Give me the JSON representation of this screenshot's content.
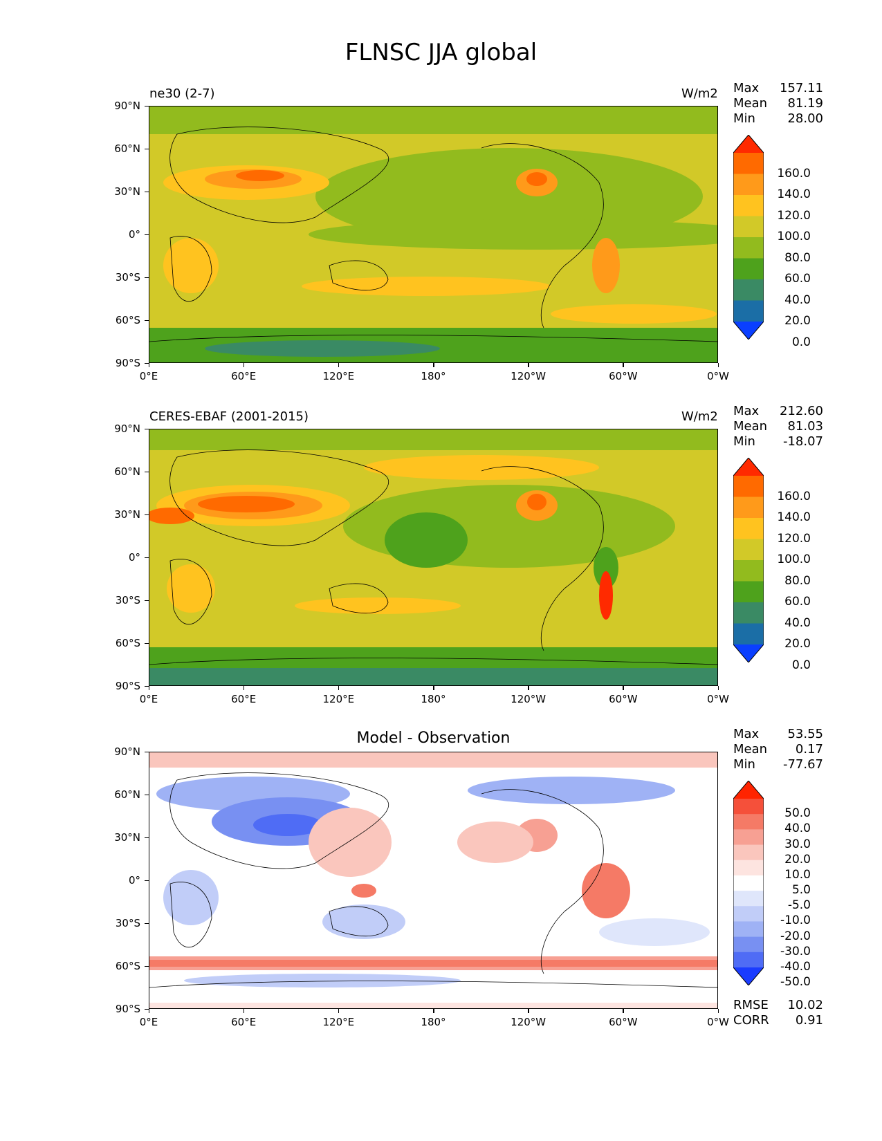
{
  "figure_title": "FLNSC JJA global",
  "panels": [
    {
      "label_left": "ne30 (2-7)",
      "label_right": "W/m2",
      "label_center": "",
      "stats": [
        {
          "k": "Max",
          "v": "157.11"
        },
        {
          "k": "Mean",
          "v": "81.19"
        },
        {
          "k": "Min",
          "v": "28.00"
        }
      ],
      "extra_stats": []
    },
    {
      "label_left": "CERES-EBAF (2001-2015)",
      "label_right": "W/m2",
      "label_center": "",
      "stats": [
        {
          "k": "Max",
          "v": "212.60"
        },
        {
          "k": "Mean",
          "v": "81.03"
        },
        {
          "k": "Min",
          "v": "-18.07"
        }
      ],
      "extra_stats": []
    },
    {
      "label_left": "",
      "label_right": "",
      "label_center": "Model - Observation",
      "stats": [
        {
          "k": "Max",
          "v": "53.55"
        },
        {
          "k": "Mean",
          "v": "0.17"
        },
        {
          "k": "Min",
          "v": "-77.67"
        }
      ],
      "extra_stats": [
        {
          "k": "RMSE",
          "v": "10.02"
        },
        {
          "k": "CORR",
          "v": "0.91"
        }
      ]
    }
  ],
  "axes": {
    "y_ticks": [
      "90°N",
      "60°N",
      "30°N",
      "0°",
      "30°S",
      "60°S",
      "90°S"
    ],
    "x_ticks": [
      "0°E",
      "60°E",
      "120°E",
      "180°",
      "120°W",
      "60°W",
      "0°W"
    ]
  },
  "colorbar_abs": {
    "labels": [
      "160.0",
      "140.0",
      "120.0",
      "100.0",
      "80.0",
      "60.0",
      "40.0",
      "20.0",
      "0.0"
    ],
    "colors": [
      "#ff2a00",
      "#ff6a00",
      "#ff9a1a",
      "#ffc31f",
      "#d2c928",
      "#92bb1e",
      "#4ea21c",
      "#3a8a64",
      "#1b6ea6",
      "#0a3fff"
    ]
  },
  "colorbar_diff": {
    "labels": [
      "50.0",
      "40.0",
      "30.0",
      "20.0",
      "10.0",
      "5.0",
      "-5.0",
      "-10.0",
      "-20.0",
      "-30.0",
      "-40.0",
      "-50.0"
    ],
    "colors": [
      "#ff2400",
      "#f5503a",
      "#f57a66",
      "#f7a093",
      "#fac6bd",
      "#fde4e0",
      "#ffffff",
      "#dfe6fb",
      "#c1cdf8",
      "#9fb2f5",
      "#7890f2",
      "#4f6cf5",
      "#1a3cff"
    ]
  },
  "chart_data": [
    {
      "type": "heatmap",
      "title": "ne30 (2-7)",
      "units": "W/m2",
      "x_range": [
        "0°E",
        "0°W"
      ],
      "y_range": [
        "90°S",
        "90°N"
      ],
      "levels": [
        0,
        20,
        40,
        60,
        80,
        100,
        120,
        140,
        160
      ],
      "stats": {
        "max": 157.11,
        "mean": 81.19,
        "min": 28.0
      }
    },
    {
      "type": "heatmap",
      "title": "CERES-EBAF (2001-2015)",
      "units": "W/m2",
      "x_range": [
        "0°E",
        "0°W"
      ],
      "y_range": [
        "90°S",
        "90°N"
      ],
      "levels": [
        0,
        20,
        40,
        60,
        80,
        100,
        120,
        140,
        160
      ],
      "stats": {
        "max": 212.6,
        "mean": 81.03,
        "min": -18.07
      }
    },
    {
      "type": "heatmap",
      "title": "Model - Observation",
      "x_range": [
        "0°E",
        "0°W"
      ],
      "y_range": [
        "90°S",
        "90°N"
      ],
      "levels": [
        -50,
        -40,
        -30,
        -20,
        -10,
        -5,
        5,
        10,
        20,
        30,
        40,
        50
      ],
      "stats": {
        "max": 53.55,
        "mean": 0.17,
        "min": -77.67,
        "rmse": 10.02,
        "corr": 0.91
      }
    }
  ]
}
